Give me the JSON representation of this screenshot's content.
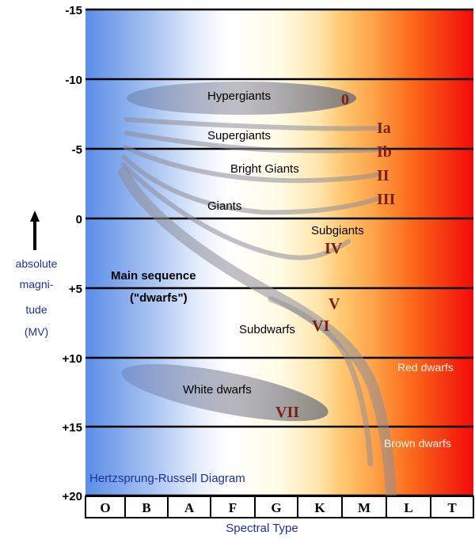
{
  "title": "Hertzsprung-Russell Diagram",
  "x_axis": {
    "label": "Spectral Type",
    "ticks": [
      "O",
      "B",
      "A",
      "F",
      "G",
      "K",
      "M",
      "L",
      "T"
    ]
  },
  "y_axis": {
    "label_lines": [
      "absolute",
      "magni-",
      "tude"
    ],
    "label_symbol": "(MV)",
    "ticks": [
      "-15",
      "-10",
      "-5",
      "0",
      "+5",
      "+10",
      "+15",
      "+20"
    ]
  },
  "regions": {
    "hypergiants": "Hypergiants",
    "supergiants": "Supergiants",
    "bright_giants": "Bright Giants",
    "giants": "Giants",
    "subgiants": "Subgiants",
    "main_sequence": "Main sequence",
    "dwarfs": "(\"dwarfs\")",
    "subdwarfs": "Subdwarfs",
    "white_dwarfs": "White dwarfs",
    "red_dwarfs": "Red dwarfs",
    "brown_dwarfs": "Brown dwarfs"
  },
  "luminosity_classes": {
    "c0": "0",
    "cIa": "Ia",
    "cIb": "Ib",
    "cII": "II",
    "cIII": "III",
    "cIV": "IV",
    "cV": "V",
    "cVI": "VI",
    "cVII": "VII"
  },
  "colors": {
    "hot": "#5b8de8",
    "white": "#ffffff",
    "cool": "#fb6a1a",
    "coolest": "#f10a0a",
    "roman": "#7a1f14",
    "axis_blue": "#1f2f9f"
  }
}
